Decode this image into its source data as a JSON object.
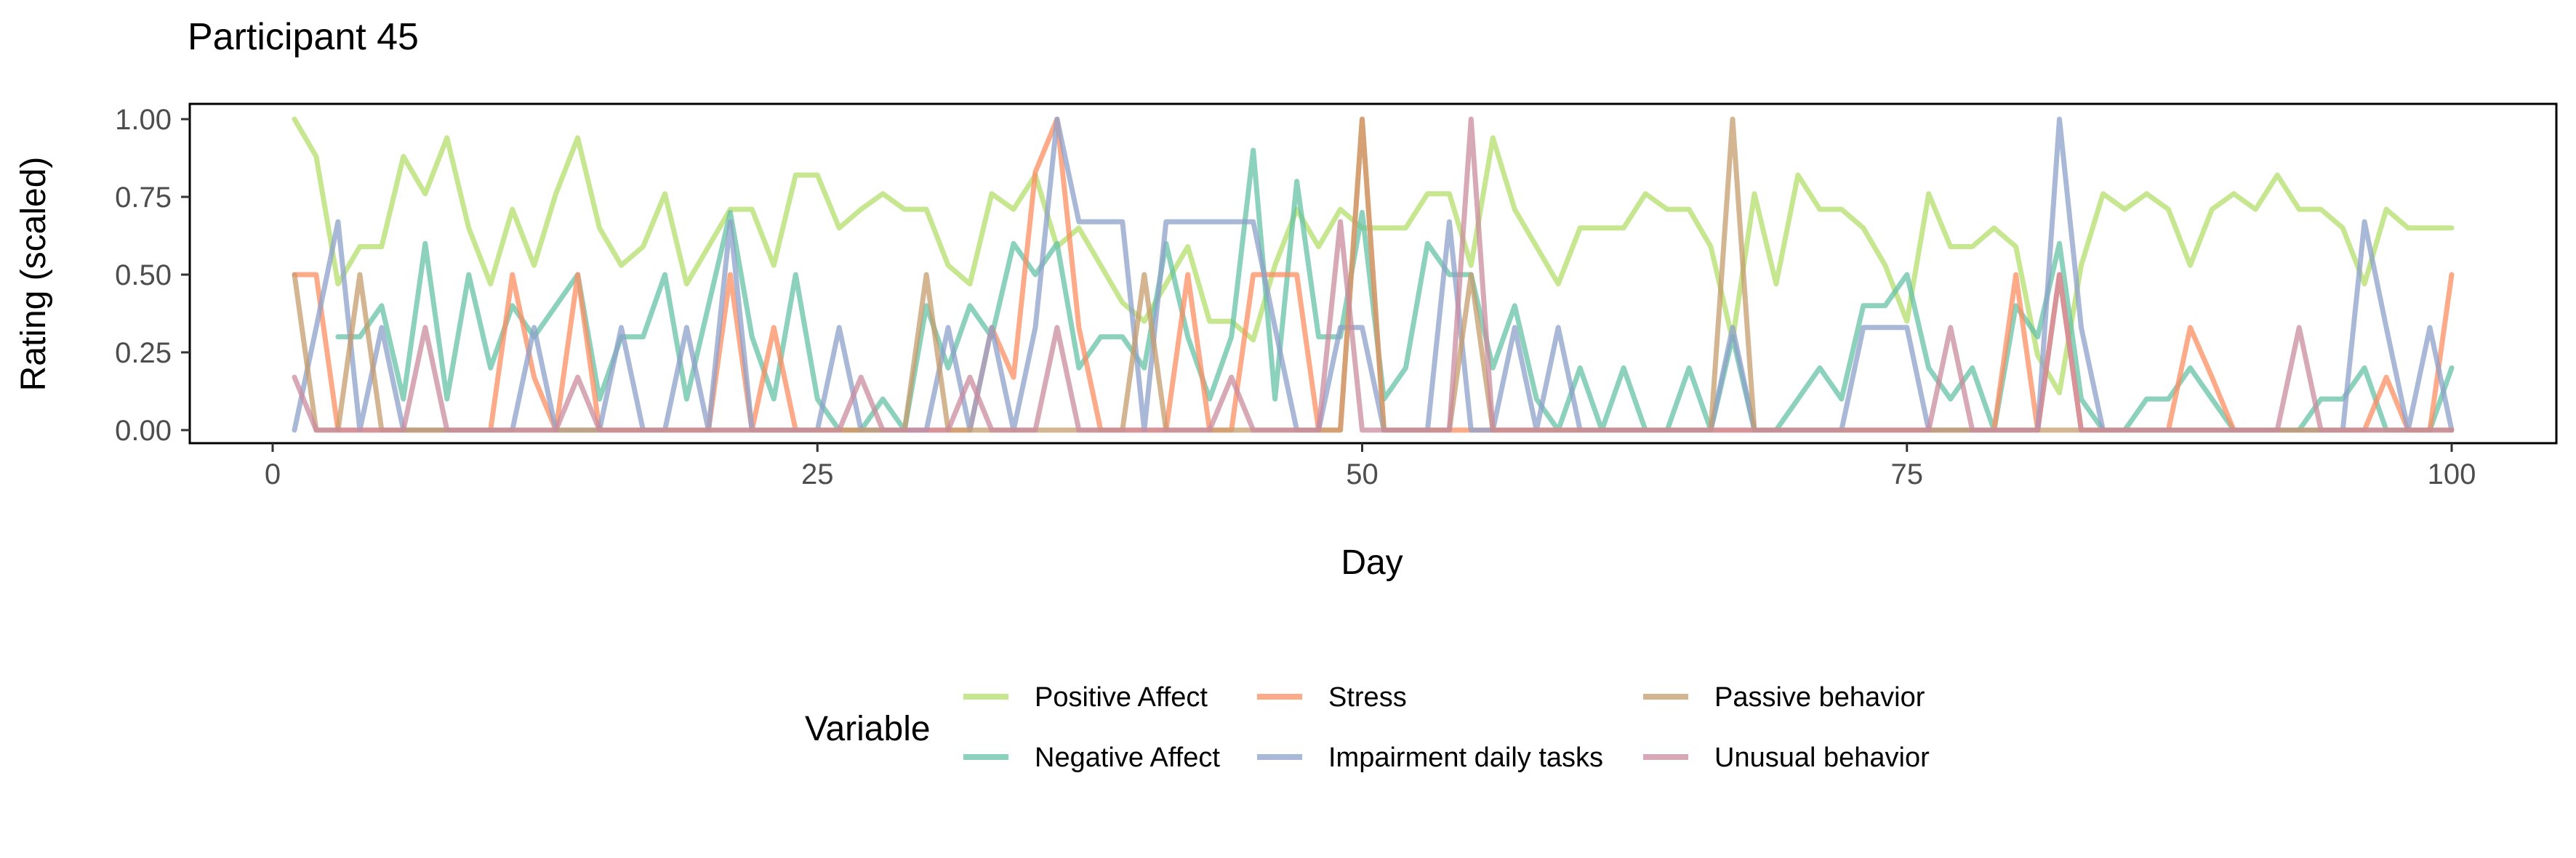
{
  "chart_data": {
    "type": "line",
    "title": "Participant 45",
    "xlabel": "Day",
    "ylabel": "Rating (scaled)",
    "xlim": [
      1,
      100
    ],
    "ylim": [
      0,
      1
    ],
    "x_ticks": [
      0,
      25,
      50,
      75,
      100
    ],
    "x_tick_labels": [
      "0",
      "25",
      "50",
      "75",
      "100"
    ],
    "y_ticks": [
      0,
      0.25,
      0.5,
      0.75,
      1
    ],
    "y_tick_labels": [
      "0.00",
      "0.25",
      "0.50",
      "0.75",
      "1.00"
    ],
    "grid": false,
    "legend": {
      "title": "Variable",
      "position": "bottom"
    },
    "series": [
      {
        "name": "Positive Affect",
        "color": "#b3de69",
        "values": [
          1.0,
          0.88,
          0.47,
          0.59,
          0.59,
          0.88,
          0.76,
          0.94,
          0.65,
          0.47,
          0.71,
          0.53,
          0.76,
          0.94,
          0.65,
          0.53,
          0.59,
          0.76,
          0.47,
          0.59,
          0.71,
          0.71,
          0.53,
          0.82,
          0.82,
          0.65,
          0.71,
          0.76,
          0.71,
          0.71,
          0.53,
          0.47,
          0.76,
          0.71,
          0.82,
          0.59,
          0.65,
          0.53,
          0.41,
          0.35,
          0.47,
          0.59,
          0.35,
          0.35,
          0.29,
          0.53,
          0.71,
          0.59,
          0.71,
          0.65,
          0.65,
          0.65,
          0.76,
          0.76,
          0.53,
          0.94,
          0.71,
          0.59,
          0.47,
          0.65,
          0.65,
          0.65,
          0.76,
          0.71,
          0.71,
          0.59,
          0.29,
          0.76,
          0.47,
          0.82,
          0.71,
          0.71,
          0.65,
          0.53,
          0.35,
          0.76,
          0.59,
          0.59,
          0.65,
          0.59,
          0.24,
          0.12,
          0.53,
          0.76,
          0.71,
          0.76,
          0.71,
          0.53,
          0.71,
          0.76,
          0.71,
          0.82,
          0.71,
          0.71,
          0.65,
          0.47,
          0.71,
          0.65,
          0.65,
          0.65
        ]
      },
      {
        "name": "Negative Affect",
        "color": "#66c2a5",
        "values": [
          null,
          null,
          0.3,
          0.3,
          0.4,
          0.1,
          0.6,
          0.1,
          0.5,
          0.2,
          0.4,
          0.3,
          0.4,
          0.5,
          0.1,
          0.3,
          0.3,
          0.5,
          0.1,
          0.4,
          0.7,
          0.3,
          0.1,
          0.5,
          0.1,
          0.0,
          0.0,
          0.1,
          0.0,
          0.4,
          0.2,
          0.4,
          0.3,
          0.6,
          0.5,
          0.6,
          0.2,
          0.3,
          0.3,
          0.2,
          0.6,
          0.3,
          0.1,
          0.3,
          0.9,
          0.1,
          0.8,
          0.3,
          0.3,
          0.7,
          0.1,
          0.2,
          0.6,
          0.5,
          0.5,
          0.2,
          0.4,
          0.1,
          0.0,
          0.2,
          0.0,
          0.2,
          0.0,
          0.0,
          0.2,
          0.0,
          0.3,
          0.0,
          0.0,
          0.1,
          0.2,
          0.1,
          0.4,
          0.4,
          0.5,
          0.2,
          0.1,
          0.2,
          0.0,
          0.4,
          0.3,
          0.6,
          0.1,
          0.0,
          0.0,
          0.1,
          0.1,
          0.2,
          0.1,
          0.0,
          0.0,
          0.0,
          0.0,
          0.1,
          0.1,
          0.2,
          0.0,
          0.0,
          0.0,
          0.2
        ]
      },
      {
        "name": "Stress",
        "color": "#fc8d62",
        "values": [
          0.5,
          0.5,
          0.0,
          0.0,
          0.0,
          0.0,
          0.0,
          0.0,
          0.0,
          0.0,
          0.5,
          0.17,
          0.0,
          0.5,
          0.0,
          0.0,
          0.0,
          0.0,
          0.0,
          0.0,
          0.5,
          0.0,
          0.33,
          0.0,
          0.0,
          0.0,
          0.0,
          0.0,
          0.0,
          0.0,
          0.0,
          0.0,
          0.33,
          0.17,
          0.83,
          1.0,
          0.33,
          0.0,
          0.0,
          0.0,
          0.0,
          0.5,
          0.0,
          0.0,
          0.5,
          0.5,
          0.5,
          0.0,
          0.0,
          1.0,
          0.0,
          0.0,
          0.0,
          0.0,
          0.0,
          0.0,
          0.0,
          0.0,
          0.0,
          0.0,
          0.0,
          0.0,
          0.0,
          0.0,
          0.0,
          0.0,
          0.0,
          0.0,
          0.0,
          0.0,
          0.0,
          0.0,
          0.0,
          0.0,
          0.0,
          0.0,
          0.0,
          0.0,
          0.0,
          0.5,
          0.0,
          0.5,
          0.0,
          0.0,
          0.0,
          0.0,
          0.0,
          0.33,
          0.17,
          0.0,
          0.0,
          0.0,
          0.0,
          0.0,
          0.0,
          0.0,
          0.17,
          0.0,
          0.0,
          0.5
        ]
      },
      {
        "name": "Impairment daily tasks",
        "color": "#8da0cb",
        "values": [
          0.0,
          0.33,
          0.67,
          0.0,
          0.33,
          0.0,
          0.0,
          0.0,
          0.0,
          0.0,
          0.0,
          0.33,
          0.0,
          0.0,
          0.0,
          0.33,
          0.0,
          0.0,
          0.33,
          0.0,
          0.67,
          0.0,
          0.0,
          0.0,
          0.0,
          0.33,
          0.0,
          0.0,
          0.0,
          0.0,
          0.33,
          0.0,
          0.33,
          0.0,
          0.33,
          1.0,
          0.67,
          0.67,
          0.67,
          0.0,
          0.67,
          0.67,
          0.67,
          0.67,
          0.67,
          0.33,
          0.0,
          0.0,
          0.33,
          0.33,
          0.0,
          0.0,
          0.0,
          0.67,
          0.0,
          0.0,
          0.33,
          0.0,
          0.33,
          0.0,
          0.0,
          0.0,
          0.0,
          0.0,
          0.0,
          0.0,
          0.33,
          0.0,
          0.0,
          0.0,
          0.0,
          0.0,
          0.33,
          0.33,
          0.33,
          0.0,
          0.0,
          0.0,
          0.0,
          0.0,
          0.0,
          1.0,
          0.33,
          0.0,
          0.0,
          0.0,
          0.0,
          0.0,
          0.0,
          0.0,
          0.0,
          0.0,
          0.0,
          0.0,
          0.0,
          0.67,
          0.33,
          0.0,
          0.33,
          0.0
        ]
      },
      {
        "name": "Passive behavior",
        "color": "#c69c6d",
        "values": [
          0.5,
          0.0,
          0.0,
          0.5,
          0.0,
          0.0,
          0.0,
          0.0,
          0.0,
          0.0,
          0.0,
          0.0,
          0.0,
          0.0,
          0.0,
          0.0,
          0.0,
          0.0,
          0.0,
          0.0,
          0.0,
          0.0,
          0.0,
          0.0,
          0.0,
          0.0,
          0.0,
          0.0,
          0.0,
          0.5,
          0.0,
          0.0,
          0.0,
          0.0,
          0.0,
          0.0,
          0.0,
          0.0,
          0.0,
          0.5,
          0.0,
          0.0,
          0.0,
          0.0,
          0.0,
          0.0,
          0.0,
          0.0,
          0.0,
          1.0,
          0.0,
          0.0,
          0.0,
          0.0,
          0.5,
          0.0,
          0.0,
          0.0,
          0.0,
          0.0,
          0.0,
          0.0,
          0.0,
          0.0,
          0.0,
          0.0,
          1.0,
          0.0,
          0.0,
          0.0,
          0.0,
          0.0,
          0.0,
          0.0,
          0.0,
          0.0,
          0.0,
          0.0,
          0.0,
          0.0,
          0.0,
          0.0,
          0.0,
          0.0,
          0.0,
          0.0,
          0.0,
          0.0,
          0.0,
          0.0,
          0.0,
          0.0,
          0.0,
          0.0,
          0.0,
          0.0,
          0.0,
          0.0,
          0.0,
          0.0
        ]
      },
      {
        "name": "Unusual behavior",
        "color": "#c98b9e",
        "values": [
          0.17,
          0.0,
          0.0,
          0.0,
          0.0,
          0.0,
          0.33,
          0.0,
          0.0,
          0.0,
          0.0,
          0.0,
          0.0,
          0.17,
          0.0,
          0.0,
          0.0,
          0.0,
          0.0,
          0.0,
          0.0,
          0.0,
          0.0,
          0.0,
          0.0,
          0.0,
          0.17,
          0.0,
          0.0,
          0.0,
          0.0,
          0.17,
          0.0,
          0.0,
          0.0,
          0.33,
          0.0,
          0.0,
          0.0,
          0.0,
          0.0,
          0.0,
          0.0,
          0.17,
          0.0,
          0.0,
          0.0,
          0.0,
          0.67,
          0.0,
          0.0,
          0.0,
          0.0,
          0.0,
          1.0,
          0.0,
          0.0,
          0.0,
          0.0,
          0.0,
          0.0,
          0.0,
          0.0,
          0.0,
          0.0,
          0.0,
          0.0,
          0.0,
          0.0,
          0.0,
          0.0,
          0.0,
          0.0,
          0.0,
          0.0,
          0.0,
          0.33,
          0.0,
          0.0,
          0.0,
          0.0,
          0.5,
          0.0,
          0.0,
          0.0,
          0.0,
          0.0,
          0.0,
          0.0,
          0.0,
          0.0,
          0.0,
          0.33,
          0.0,
          0.0,
          0.0,
          0.0,
          0.0,
          0.0,
          0.0
        ]
      }
    ]
  }
}
